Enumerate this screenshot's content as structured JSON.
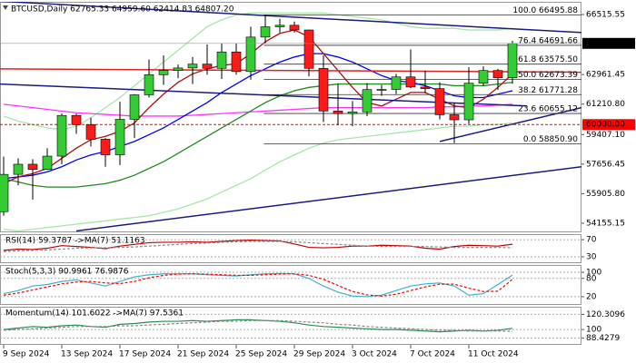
{
  "chart_data": [
    {
      "type": "candlestick",
      "title": "BTCUSD,Daily  62765.33 64959.60 62414.83 64807.20",
      "categories": [
        "9 Sep 2024",
        null,
        null,
        null,
        "13 Sep 2024",
        null,
        null,
        null,
        "17 Sep 2024",
        null,
        null,
        null,
        "21 Sep 2024",
        null,
        null,
        null,
        "25 Sep 2024",
        null,
        null,
        null,
        "29 Sep 2024",
        null,
        null,
        null,
        "3 Oct 2024",
        null,
        null,
        null,
        "7 Oct 2024",
        null,
        null,
        null,
        "11 Oct 2024",
        null,
        null,
        null
      ],
      "open": [
        54841,
        57050,
        57650,
        57340,
        58130,
        60540,
        60000,
        59130,
        58210,
        60310,
        61760,
        62950,
        63200,
        63350,
        63580,
        63330,
        64300,
        63140,
        65180,
        65790,
        65880,
        65600,
        63330,
        60800,
        60650,
        60750,
        62070,
        62080,
        62820,
        62220,
        62130,
        60580,
        60280,
        62450,
        63200,
        62765.33
      ],
      "high": [
        58100,
        58000,
        57950,
        58600,
        60650,
        60650,
        60400,
        59200,
        61350,
        61800,
        63850,
        64100,
        63550,
        64000,
        64750,
        64800,
        64800,
        65800,
        66500,
        66260,
        66100,
        65620,
        64100,
        62400,
        61400,
        62450,
        62350,
        63000,
        64450,
        63200,
        62500,
        61300,
        63400,
        63450,
        63300,
        64959.6
      ],
      "low": [
        54600,
        56400,
        55550,
        57300,
        57650,
        59450,
        58700,
        57500,
        57600,
        59200,
        61600,
        62350,
        62750,
        62400,
        62950,
        62700,
        62950,
        62650,
        64800,
        65450,
        65450,
        62850,
        60150,
        59950,
        59900,
        60500,
        61700,
        61800,
        62150,
        61850,
        60300,
        58900,
        60050,
        62300,
        62050,
        62414.83
      ],
      "close": [
        57050,
        57650,
        57340,
        58130,
        60540,
        60000,
        59130,
        58210,
        60310,
        61760,
        62950,
        63200,
        63350,
        63580,
        63330,
        64300,
        63140,
        65180,
        65790,
        65880,
        65600,
        63330,
        60800,
        60650,
        60750,
        62070,
        62080,
        62820,
        62220,
        62130,
        60580,
        60280,
        62450,
        63200,
        62770,
        64807.2
      ],
      "up_color": "#33cc33",
      "down_color": "#ff1a1a",
      "ylim": [
        53618,
        67268
      ],
      "yticks": [
        66515.55,
        62961.45,
        {
          "value": 61210.8,
          "label": "61210.80"
        },
        {
          "value": 59407.1,
          "label": "59407.10"
        },
        57656.45,
        {
          "value": 55905.8,
          "label": "55905.80"
        },
        54155.15
      ],
      "lines": [
        {
          "color": "#a8e6a8",
          "values": [
            60500,
            60200,
            60000,
            59800,
            59700,
            59900,
            60400,
            61000,
            61600,
            62300,
            63000,
            63700,
            64400,
            65100,
            65800,
            66200,
            66500,
            66600,
            66600,
            66600,
            66600,
            66600,
            66600,
            66500,
            66400,
            66300,
            66200,
            66000,
            65800,
            65700,
            65700,
            65700,
            65600,
            65600,
            65600,
            65700
          ]
        },
        {
          "color": "#a8e6a8",
          "values": [
            53800,
            53700,
            53800,
            53900,
            54000,
            54100,
            54200,
            54300,
            54400,
            54500,
            54600,
            54800,
            55000,
            55300,
            55600,
            56000,
            56400,
            56800,
            57300,
            57800,
            58200,
            58600,
            58900,
            59100,
            59200,
            59300,
            59400,
            59500,
            59600,
            59700,
            59800,
            59900,
            59900,
            60000,
            60000,
            60100
          ]
        },
        {
          "color": "#ff33ff",
          "values": [
            61200,
            61100,
            61000,
            60900,
            60800,
            60700,
            60650,
            60600,
            60550,
            60500,
            60500,
            60500,
            60500,
            60550,
            60600,
            60650,
            60700,
            60750,
            60800,
            60850,
            60900,
            60950,
            61000,
            61000,
            61000,
            61000,
            61000,
            61000,
            61000,
            61000,
            61050,
            61050,
            61100,
            61100,
            61150,
            61200
          ]
        },
        {
          "color": "#228b22",
          "values": [
            56800,
            56600,
            56400,
            56300,
            56300,
            56300,
            56400,
            56500,
            56700,
            57000,
            57400,
            57800,
            58300,
            58800,
            59300,
            59800,
            60300,
            60800,
            61300,
            61700,
            62000,
            62200,
            62300,
            62400,
            62400,
            62400,
            62400,
            62400,
            62400,
            62400,
            62400,
            62300,
            62300,
            62300,
            62400,
            62500
          ]
        },
        {
          "color": "#0000ff",
          "values": [
            56800,
            56900,
            57000,
            57200,
            57500,
            57900,
            58200,
            58400,
            58700,
            59000,
            59400,
            59800,
            60300,
            60800,
            61300,
            61900,
            62400,
            62900,
            63300,
            63700,
            64000,
            64200,
            64200,
            64000,
            63700,
            63300,
            62900,
            62600,
            62500,
            62300,
            62000,
            61700,
            61600,
            61600,
            61800,
            62000
          ]
        },
        {
          "color": "#aa1111",
          "values": [
            56500,
            56900,
            57100,
            57400,
            58000,
            58600,
            59100,
            59300,
            59600,
            60100,
            61000,
            61800,
            62500,
            63000,
            63300,
            63500,
            63600,
            64200,
            64900,
            65400,
            65600,
            65200,
            64200,
            63200,
            62200,
            61300,
            61100,
            61500,
            61900,
            61900,
            61500,
            61100,
            61000,
            61500,
            62200,
            63000
          ]
        }
      ],
      "trendlines": [
        {
          "color": "#1a1a80",
          "x": [
            -0.25,
            39.75
          ],
          "values": [
            67300,
            65450
          ]
        },
        {
          "color": "#1a1a80",
          "x": [
            -0.25,
            36
          ],
          "values": [
            62400,
            61100
          ]
        },
        {
          "color": "#1a1a80",
          "x": [
            5,
            39.75
          ],
          "values": [
            53700,
            57500
          ]
        },
        {
          "color": "#1a1a80",
          "x": [
            30,
            39.75
          ],
          "values": [
            59000,
            61000
          ]
        },
        {
          "color": "#dd2222",
          "x": [
            -0.25,
            39.75
          ],
          "values": [
            63300,
            63100
          ]
        }
      ],
      "fib": {
        "color": "#333333",
        "x": 17.9,
        "levels": [
          {
            "text": "100.0 66495.88",
            "value": 66495.88
          },
          {
            "text": "76.4 64691.66",
            "value": 64691.66
          },
          {
            "text": "61.8 63575.50",
            "value": 63575.5
          },
          {
            "text": "50.0 62673.39",
            "value": 62673.39
          },
          {
            "text": "38.2 61771.28",
            "value": 61771.28
          },
          {
            "text": "23.6 60655.12",
            "value": 60655.12
          },
          {
            "text": "0.0 58850.90",
            "value": 58850.9
          }
        ]
      },
      "level": {
        "value": 60000,
        "label": "60000.00",
        "color": "#ff0000"
      },
      "last_price": {
        "value": 64807.2,
        "label": "64807.20"
      }
    },
    {
      "type": "line",
      "title": "RSI(14) 59.3787 ->MA(7) 51.1163",
      "ylim": [
        15,
        83
      ],
      "yticks": [
        70,
        30
      ],
      "grid": true,
      "series": [
        {
          "color": "#c00000",
          "values": [
            45,
            48,
            47,
            50,
            56,
            54,
            52,
            49,
            55,
            59,
            63,
            64,
            64,
            65,
            64,
            66,
            68,
            69,
            68,
            67,
            60,
            52,
            51,
            52,
            55,
            55,
            57,
            56,
            55,
            50,
            48,
            54,
            57,
            56,
            55,
            59.3787
          ]
        },
        {
          "color": "#888888",
          "dash": true,
          "values": [
            42,
            44,
            45,
            46,
            48,
            50,
            51,
            51,
            52,
            53,
            55,
            57,
            59,
            61,
            62,
            64,
            65,
            66,
            66,
            66,
            65,
            63,
            61,
            59,
            57,
            55,
            54,
            54,
            54,
            54,
            53,
            52,
            52,
            52,
            52,
            51.1163
          ]
        }
      ]
    },
    {
      "type": "line",
      "title": "Stoch(5,3,3) 90.9961 76.9876",
      "ylim": [
        -7,
        124
      ],
      "yticks": [
        100,
        80,
        20
      ],
      "grid": true,
      "series": [
        {
          "color": "#3cb4c8",
          "values": [
            30,
            40,
            55,
            60,
            70,
            75,
            65,
            55,
            70,
            85,
            92,
            95,
            95,
            95,
            92,
            90,
            88,
            92,
            95,
            96,
            95,
            80,
            55,
            35,
            22,
            20,
            25,
            40,
            55,
            62,
            65,
            55,
            25,
            30,
            60,
            90.9961
          ]
        },
        {
          "color": "#ff0000",
          "dash": true,
          "values": [
            25,
            32,
            42,
            52,
            62,
            68,
            70,
            65,
            63,
            70,
            82,
            90,
            94,
            95,
            94,
            92,
            90,
            90,
            92,
            94,
            95,
            90,
            77,
            57,
            37,
            26,
            22,
            28,
            40,
            52,
            61,
            61,
            48,
            37,
            38,
            76.9876
          ]
        }
      ]
    },
    {
      "type": "line",
      "title": "Momentum(14) 101.6022 ->MA(7) 97.5361",
      "ylim": [
        79.5,
        130.5
      ],
      "yticks": [
        120.3096,
        100,
        88.4279
      ],
      "grid": true,
      "series": [
        {
          "color": "#2e8b57",
          "values": [
            100,
            102,
            104,
            103,
            105,
            106,
            104,
            103,
            107,
            108,
            110,
            111,
            111,
            112,
            111,
            112,
            113,
            113,
            112,
            111,
            109,
            106,
            104,
            103,
            102,
            101,
            100,
            100,
            99,
            98,
            97,
            98,
            99,
            98,
            99,
            101.6022
          ]
        },
        {
          "color": "#888888",
          "dash": true,
          "values": [
            99,
            100,
            101,
            102,
            103,
            104,
            104,
            104,
            105,
            105,
            106,
            107,
            108,
            109,
            110,
            111,
            111,
            112,
            112,
            112,
            111,
            110,
            109,
            107,
            106,
            104,
            103,
            102,
            101,
            100,
            99,
            99,
            98,
            98,
            98,
            97.5361
          ]
        }
      ]
    }
  ]
}
